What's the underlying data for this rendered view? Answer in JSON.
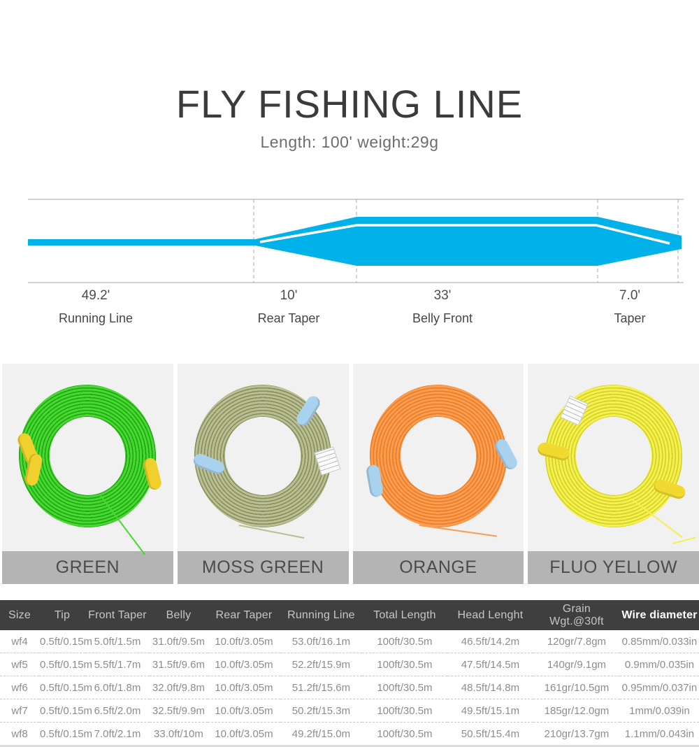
{
  "header": {
    "title": "FLY FISHING LINE",
    "subtitle": "Length: 100' weight:29g"
  },
  "diagram": {
    "line_color": "#00b1ea",
    "highlight_color": "#ffffff",
    "guide_color": "#c4c4c4",
    "segments": [
      {
        "value": "49.2'",
        "label": "Running Line"
      },
      {
        "value": "10'",
        "label": "Rear Taper"
      },
      {
        "value": "33'",
        "label": "Belly Front"
      },
      {
        "value": "7.0'",
        "label": "Taper"
      }
    ]
  },
  "products": [
    {
      "label": "GREEN",
      "line_color": "#46d92f",
      "line_shade": "#23a315",
      "tie_color": "#f0d02c",
      "has_tag": false
    },
    {
      "label": "MOSS GREEN",
      "line_color": "#b9bf93",
      "line_shade": "#878f5e",
      "tie_color": "#a9d2ef",
      "has_tag": true
    },
    {
      "label": "ORANGE",
      "line_color": "#f89d52",
      "line_shade": "#ee7c22",
      "tie_color": "#a9d2ef",
      "has_tag": false
    },
    {
      "label": "FLUO YELLOW",
      "line_color": "#f4f04e",
      "line_shade": "#d5d028",
      "tie_color": "#f2d930",
      "has_tag": true
    }
  ],
  "table": {
    "columns": [
      "Size",
      "Tip",
      "Front Taper",
      "Belly",
      "Rear Taper",
      "Running Line",
      "Total Length",
      "Head Lenght",
      "Grain Wgt.@30ft",
      "Wire diameter"
    ],
    "rows": [
      [
        "wf4",
        "0.5ft/0.15m",
        "5.0ft/1.5m",
        "31.0ft/9.5m",
        "10.0ft/3.05m",
        "53.0ft/16.1m",
        "100ft/30.5m",
        "46.5ft/14.2m",
        "120gr/7.8gm",
        "0.85mm/0.033in"
      ],
      [
        "wf5",
        "0.5ft/0.15m",
        "5.5ft/1.7m",
        "31.5ft/9.6m",
        "10.0ft/3.05m",
        "52.2ft/15.9m",
        "100ft/30.5m",
        "47.5ft/14.5m",
        "140gr/9.1gm",
        "0.9mm/0.035in"
      ],
      [
        "wf6",
        "0.5ft/0.15m",
        "6.0ft/1.8m",
        "32.0ft/9.8m",
        "10.0ft/3.05m",
        "51.2ft/15.6m",
        "100ft/30.5m",
        "48.5ft/14.8m",
        "161gr/10.5gm",
        "0.95mm/0.037in"
      ],
      [
        "wf7",
        "0.5ft/0.15m",
        "6.5ft/2.0m",
        "32.5ft/9.9m",
        "10.0ft/3.05m",
        "50.2ft/15.3m",
        "100ft/30.5m",
        "49.5ft/15.1m",
        "185gr/12.0gm",
        "1mm/0.039in"
      ],
      [
        "wf8",
        "0.5ft/0.15m",
        "7.0ft/2.1m",
        "33.0ft/10m",
        "10.0ft/3.05m",
        "49.2ft/15.0m",
        "100ft/30.5m",
        "50.5ft/15.4m",
        "210gr/13.7gm",
        "1.1mm/0.043in"
      ]
    ]
  }
}
